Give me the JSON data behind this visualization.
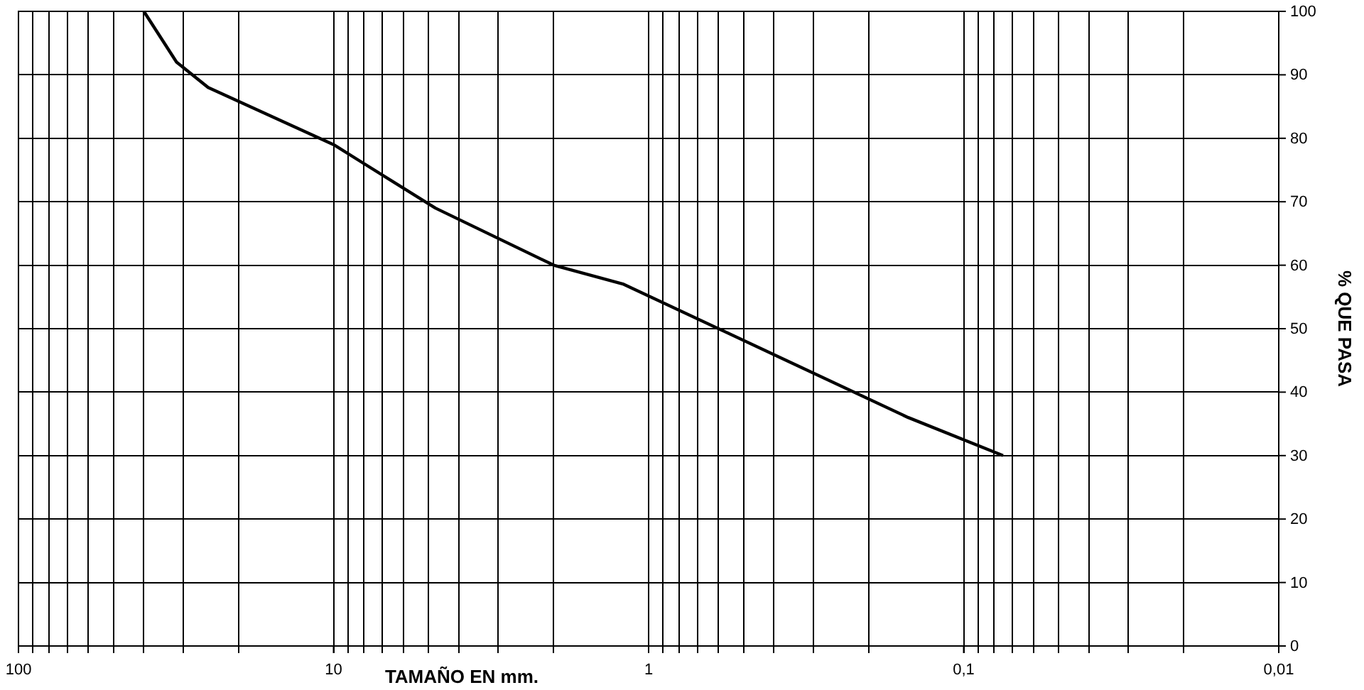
{
  "chart_data": {
    "type": "line",
    "xlabel": "TAMAÑO EN mm.",
    "ylabel": "% QUE PASA",
    "log": "x",
    "grid": true,
    "marker": "none",
    "line_style": "solid",
    "xlim": [
      100,
      0.01
    ],
    "xticks": [
      100,
      10,
      1,
      {
        "value": 0.1,
        "label": "0,1"
      },
      {
        "value": 0.01,
        "label": "0,01"
      }
    ],
    "ylim": [
      0,
      100
    ],
    "yticks": [
      0,
      10,
      20,
      30,
      40,
      50,
      60,
      70,
      80,
      90,
      100
    ],
    "x": [
      40,
      31.5,
      25,
      10,
      4.75,
      2,
      1.2,
      0.15,
      0.075
    ],
    "series": [
      {
        "color": "#000000",
        "values": [
          100,
          92,
          88,
          79,
          69,
          60,
          57,
          36,
          30
        ]
      }
    ]
  }
}
